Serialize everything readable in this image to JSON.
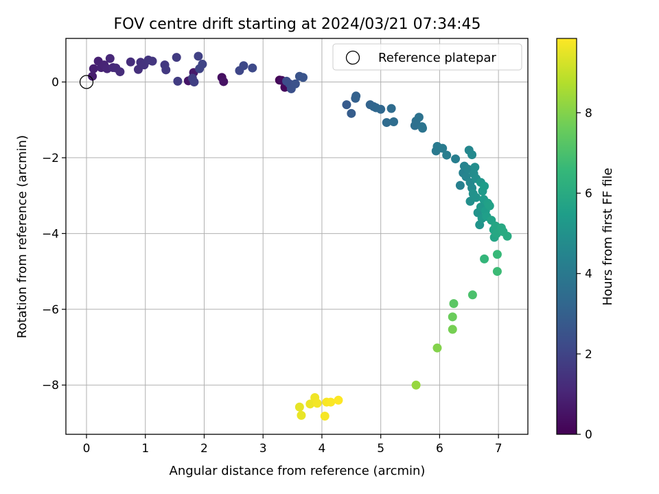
{
  "chart_data": {
    "type": "scatter",
    "title": "FOV centre drift starting at 2024/03/21 07:34:45",
    "xlabel": "Angular distance from reference (arcmin)",
    "ylabel": "Rotation from reference (arcmin)",
    "xlim": [
      -0.35,
      7.5
    ],
    "ylim": [
      -9.3,
      1.15
    ],
    "x_ticks": [
      0,
      1,
      2,
      3,
      4,
      5,
      6,
      7
    ],
    "x_tick_labels": [
      "0",
      "1",
      "2",
      "3",
      "4",
      "5",
      "6",
      "7"
    ],
    "y_ticks": [
      0,
      -2,
      -4,
      -6,
      -8
    ],
    "y_tick_labels": [
      "0",
      "−2",
      "−4",
      "−6",
      "−8"
    ],
    "grid": true,
    "legend": {
      "position": "top-right",
      "entries": [
        "Reference platepar"
      ]
    },
    "reference_point": {
      "x": 0,
      "y": 0
    },
    "colorbar": {
      "label": "Hours from first FF file",
      "colormap": "viridis",
      "range": [
        0,
        9.85
      ],
      "ticks": [
        0,
        2,
        4,
        6,
        8
      ],
      "tick_labels": [
        "0",
        "2",
        "4",
        "6",
        "8"
      ]
    },
    "points": [
      {
        "x": 3.28,
        "y": 0.05,
        "t": 0.1
      },
      {
        "x": 3.37,
        "y": -0.14,
        "t": 0.2
      },
      {
        "x": 3.32,
        "y": 0.04,
        "t": 0.3
      },
      {
        "x": 2.3,
        "y": 0.12,
        "t": 0.4
      },
      {
        "x": 2.33,
        "y": 0.01,
        "t": 0.5
      },
      {
        "x": 1.73,
        "y": 0.03,
        "t": 0.6
      },
      {
        "x": 1.82,
        "y": 0.25,
        "t": 0.7
      },
      {
        "x": 0.1,
        "y": 0.15,
        "t": 0.8
      },
      {
        "x": 0.12,
        "y": 0.35,
        "t": 0.85
      },
      {
        "x": 0.2,
        "y": 0.55,
        "t": 0.9
      },
      {
        "x": 0.25,
        "y": 0.38,
        "t": 0.95
      },
      {
        "x": 0.3,
        "y": 0.45,
        "t": 1.0
      },
      {
        "x": 0.35,
        "y": 0.35,
        "t": 1.05
      },
      {
        "x": 0.4,
        "y": 0.62,
        "t": 1.1
      },
      {
        "x": 0.45,
        "y": 0.38,
        "t": 1.15
      },
      {
        "x": 0.5,
        "y": 0.37,
        "t": 1.2
      },
      {
        "x": 0.57,
        "y": 0.27,
        "t": 1.25
      },
      {
        "x": 0.75,
        "y": 0.53,
        "t": 1.3
      },
      {
        "x": 0.88,
        "y": 0.33,
        "t": 1.35
      },
      {
        "x": 0.92,
        "y": 0.52,
        "t": 1.4
      },
      {
        "x": 0.98,
        "y": 0.45,
        "t": 1.45
      },
      {
        "x": 1.05,
        "y": 0.58,
        "t": 1.5
      },
      {
        "x": 1.12,
        "y": 0.55,
        "t": 1.55
      },
      {
        "x": 1.33,
        "y": 0.45,
        "t": 1.6
      },
      {
        "x": 1.35,
        "y": 0.32,
        "t": 1.65
      },
      {
        "x": 1.53,
        "y": 0.65,
        "t": 1.7
      },
      {
        "x": 1.55,
        "y": 0.02,
        "t": 1.75
      },
      {
        "x": 1.8,
        "y": 0.1,
        "t": 1.8
      },
      {
        "x": 1.83,
        "y": 0.0,
        "t": 1.85
      },
      {
        "x": 1.9,
        "y": 0.68,
        "t": 1.9
      },
      {
        "x": 1.92,
        "y": 0.35,
        "t": 1.95
      },
      {
        "x": 1.97,
        "y": 0.47,
        "t": 2.0
      },
      {
        "x": 2.6,
        "y": 0.3,
        "t": 2.1
      },
      {
        "x": 2.67,
        "y": 0.43,
        "t": 2.15
      },
      {
        "x": 2.82,
        "y": 0.37,
        "t": 2.2
      },
      {
        "x": 3.4,
        "y": 0.02,
        "t": 2.3
      },
      {
        "x": 3.45,
        "y": -0.05,
        "t": 2.35
      },
      {
        "x": 3.48,
        "y": -0.18,
        "t": 2.4
      },
      {
        "x": 3.55,
        "y": -0.05,
        "t": 2.45
      },
      {
        "x": 3.62,
        "y": 0.15,
        "t": 2.5
      },
      {
        "x": 3.68,
        "y": 0.12,
        "t": 2.55
      },
      {
        "x": 4.42,
        "y": -0.6,
        "t": 2.8
      },
      {
        "x": 4.5,
        "y": -0.83,
        "t": 2.9
      },
      {
        "x": 4.57,
        "y": -0.43,
        "t": 3.0
      },
      {
        "x": 4.58,
        "y": -0.37,
        "t": 3.05
      },
      {
        "x": 4.82,
        "y": -0.6,
        "t": 3.15
      },
      {
        "x": 4.88,
        "y": -0.65,
        "t": 3.2
      },
      {
        "x": 4.92,
        "y": -0.68,
        "t": 3.25
      },
      {
        "x": 5.0,
        "y": -0.72,
        "t": 3.3
      },
      {
        "x": 5.1,
        "y": -1.07,
        "t": 3.4
      },
      {
        "x": 5.18,
        "y": -0.7,
        "t": 3.45
      },
      {
        "x": 5.22,
        "y": -1.05,
        "t": 3.5
      },
      {
        "x": 5.58,
        "y": -1.15,
        "t": 3.6
      },
      {
        "x": 5.6,
        "y": -1.03,
        "t": 3.65
      },
      {
        "x": 5.65,
        "y": -0.93,
        "t": 3.7
      },
      {
        "x": 5.7,
        "y": -1.18,
        "t": 3.75
      },
      {
        "x": 5.71,
        "y": -1.22,
        "t": 3.8
      },
      {
        "x": 5.94,
        "y": -1.82,
        "t": 4.0
      },
      {
        "x": 5.96,
        "y": -1.7,
        "t": 4.05
      },
      {
        "x": 6.05,
        "y": -1.75,
        "t": 4.1
      },
      {
        "x": 6.12,
        "y": -1.93,
        "t": 4.15
      },
      {
        "x": 6.27,
        "y": -2.03,
        "t": 4.2
      },
      {
        "x": 6.35,
        "y": -2.73,
        "t": 4.3
      },
      {
        "x": 6.4,
        "y": -2.4,
        "t": 4.35
      },
      {
        "x": 6.42,
        "y": -2.22,
        "t": 4.4
      },
      {
        "x": 6.45,
        "y": -2.5,
        "t": 4.45
      },
      {
        "x": 6.48,
        "y": -2.3,
        "t": 4.5
      },
      {
        "x": 6.5,
        "y": -1.8,
        "t": 4.55
      },
      {
        "x": 6.52,
        "y": -2.65,
        "t": 4.6
      },
      {
        "x": 6.55,
        "y": -1.92,
        "t": 4.65
      },
      {
        "x": 6.55,
        "y": -2.8,
        "t": 4.7
      },
      {
        "x": 6.58,
        "y": -2.42,
        "t": 4.75
      },
      {
        "x": 6.6,
        "y": -2.25,
        "t": 4.8
      },
      {
        "x": 6.62,
        "y": -2.55,
        "t": 4.85
      },
      {
        "x": 6.52,
        "y": -3.15,
        "t": 4.9
      },
      {
        "x": 6.57,
        "y": -2.95,
        "t": 4.95
      },
      {
        "x": 6.62,
        "y": -3.05,
        "t": 5.0
      },
      {
        "x": 6.65,
        "y": -3.45,
        "t": 5.05
      },
      {
        "x": 6.68,
        "y": -3.77,
        "t": 5.1
      },
      {
        "x": 6.7,
        "y": -2.65,
        "t": 5.15
      },
      {
        "x": 6.7,
        "y": -3.3,
        "t": 5.2
      },
      {
        "x": 6.72,
        "y": -3.6,
        "t": 5.25
      },
      {
        "x": 6.73,
        "y": -2.88,
        "t": 5.3
      },
      {
        "x": 6.75,
        "y": -3.1,
        "t": 5.35
      },
      {
        "x": 6.76,
        "y": -2.75,
        "t": 5.4
      },
      {
        "x": 6.78,
        "y": -3.4,
        "t": 5.45
      },
      {
        "x": 6.8,
        "y": -3.55,
        "t": 5.5
      },
      {
        "x": 6.82,
        "y": -3.2,
        "t": 5.55
      },
      {
        "x": 6.85,
        "y": -3.27,
        "t": 5.6
      },
      {
        "x": 6.88,
        "y": -3.65,
        "t": 5.65
      },
      {
        "x": 6.92,
        "y": -3.9,
        "t": 5.7
      },
      {
        "x": 6.93,
        "y": -4.1,
        "t": 5.75
      },
      {
        "x": 6.95,
        "y": -3.8,
        "t": 5.8
      },
      {
        "x": 6.97,
        "y": -4.0,
        "t": 5.85
      },
      {
        "x": 7.05,
        "y": -3.85,
        "t": 5.9
      },
      {
        "x": 7.08,
        "y": -3.95,
        "t": 5.95
      },
      {
        "x": 7.15,
        "y": -4.07,
        "t": 6.0
      },
      {
        "x": 6.76,
        "y": -4.67,
        "t": 6.5
      },
      {
        "x": 6.98,
        "y": -4.55,
        "t": 6.6
      },
      {
        "x": 6.98,
        "y": -5.0,
        "t": 6.7
      },
      {
        "x": 6.56,
        "y": -5.62,
        "t": 7.0
      },
      {
        "x": 6.24,
        "y": -5.85,
        "t": 7.3
      },
      {
        "x": 6.22,
        "y": -6.2,
        "t": 7.6
      },
      {
        "x": 6.22,
        "y": -6.53,
        "t": 7.8
      },
      {
        "x": 5.96,
        "y": -7.02,
        "t": 8.0
      },
      {
        "x": 5.6,
        "y": -8.0,
        "t": 8.3
      },
      {
        "x": 3.62,
        "y": -8.58,
        "t": 9.5
      },
      {
        "x": 3.65,
        "y": -8.8,
        "t": 9.55
      },
      {
        "x": 3.8,
        "y": -8.5,
        "t": 9.6
      },
      {
        "x": 3.88,
        "y": -8.33,
        "t": 9.65
      },
      {
        "x": 3.92,
        "y": -8.48,
        "t": 9.7
      },
      {
        "x": 4.05,
        "y": -8.82,
        "t": 9.75
      },
      {
        "x": 4.08,
        "y": -8.45,
        "t": 9.78
      },
      {
        "x": 4.15,
        "y": -8.45,
        "t": 9.8
      },
      {
        "x": 4.28,
        "y": -8.4,
        "t": 9.85
      }
    ]
  }
}
